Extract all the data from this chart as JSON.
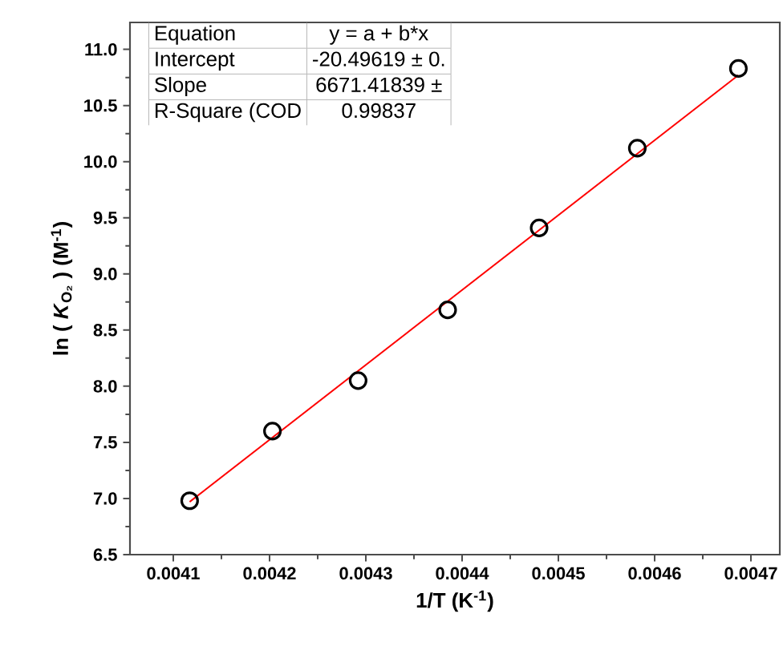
{
  "chart_data": {
    "type": "scatter",
    "xlabel": "1/T (K$^{-1}$)",
    "ylabel": "ln ( *K*$_{O₂}$ ) (M$^{-1}$)",
    "annotations": [
      "Equation",
      "y = a + b*x",
      "Intercept",
      "-20.49619 ± 0.",
      "Slope",
      "6671.41839 ±",
      "R-Square (COD",
      "0.99837"
    ],
    "series": [
      {
        "marker": "circle",
        "color": "#000000",
        "x": [
          0.004117,
          0.004203,
          0.004292,
          0.004385,
          0.00448,
          0.004582,
          0.004687
        ],
        "values": [
          6.98,
          7.6,
          8.05,
          8.68,
          9.41,
          10.12,
          10.83
        ]
      },
      {
        "type": "line",
        "marker": "none",
        "color": "#ff0000",
        "x": [
          0.004117,
          0.004687
        ],
        "values": [
          6.97,
          10.77
        ]
      }
    ],
    "xlim": [
      0.004055,
      0.00473
    ],
    "ylim": [
      6.5,
      11.24
    ],
    "xticks": [
      0.0041,
      0.0042,
      0.0043,
      0.0044,
      0.0045,
      0.0046,
      0.0047
    ],
    "yticks": [
      {
        "value": 6.5,
        "label": "6.5"
      },
      {
        "value": 7,
        "label": "7.0"
      },
      {
        "value": 7.5,
        "label": "7.5"
      },
      {
        "value": 8,
        "label": "8.0"
      },
      {
        "value": 8.5,
        "label": "8.5"
      },
      {
        "value": 9,
        "label": "9.0"
      },
      {
        "value": 9.5,
        "label": "9.5"
      },
      {
        "value": 10,
        "label": "10.0"
      },
      {
        "value": 10.5,
        "label": "10.5"
      },
      {
        "value": 11,
        "label": "11.0"
      }
    ],
    "grid": false
  }
}
